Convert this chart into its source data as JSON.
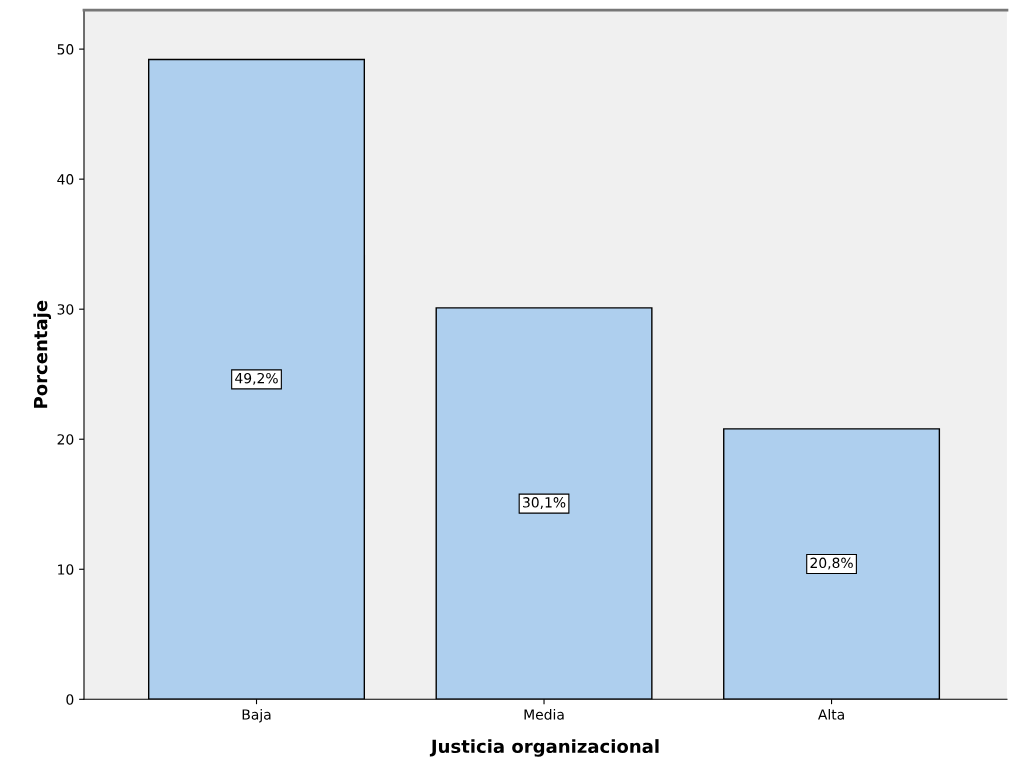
{
  "chart_data": {
    "type": "bar",
    "xlabel": "Justicia organizacional",
    "ylabel": "Porcentaje",
    "categories": [
      "Baja",
      "Media",
      "Alta"
    ],
    "values": [
      49.2,
      30.1,
      20.8
    ],
    "value_labels": [
      "49,2%",
      "30,1%",
      "20,8%"
    ],
    "color": "#aecfee",
    "ylim": [
      0,
      53
    ],
    "yticks": [
      0,
      10,
      20,
      30,
      40,
      50
    ],
    "grid": false
  }
}
